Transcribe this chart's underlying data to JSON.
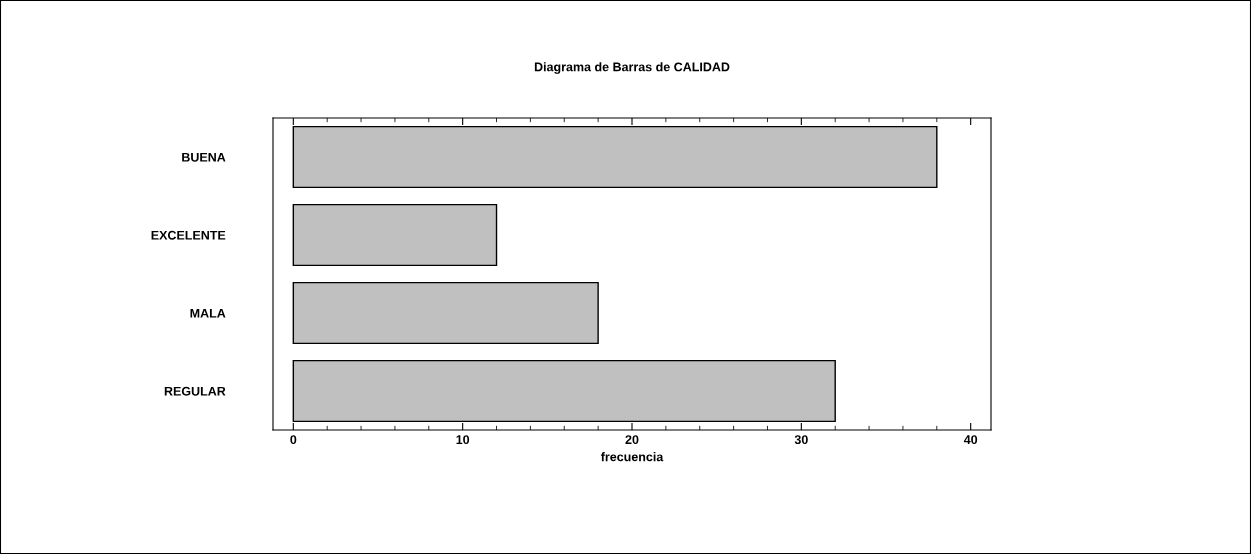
{
  "chart_data": {
    "type": "bar",
    "orientation": "horizontal",
    "title": "Diagrama de Barras de CALIDAD",
    "xlabel": "frecuencia",
    "categories": [
      "BUENA",
      "EXCELENTE",
      "MALA",
      "REGULAR"
    ],
    "values": [
      38,
      12,
      18,
      32
    ],
    "color": "#c0c0c0",
    "xlim": [
      -1.2,
      41.2
    ],
    "xticks": [
      0,
      10,
      20,
      30,
      40
    ],
    "grid": false
  }
}
